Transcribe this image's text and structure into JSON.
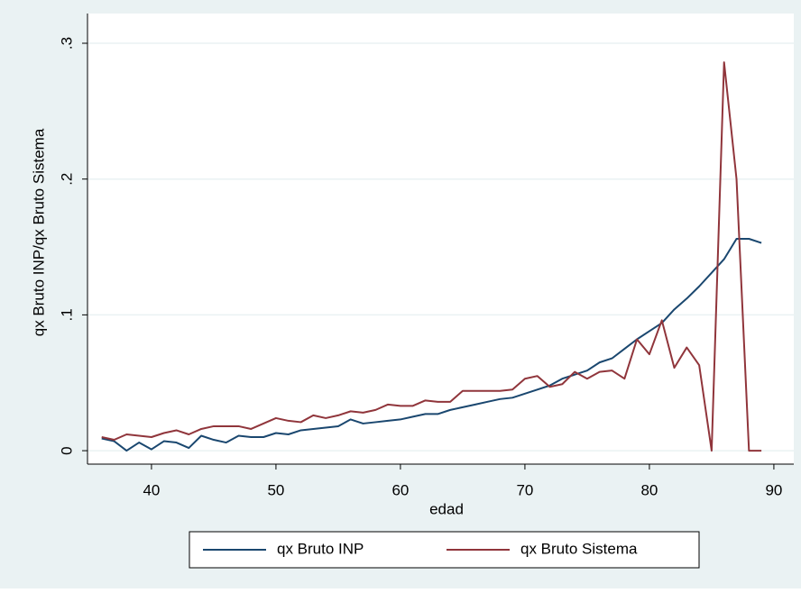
{
  "chart_data": {
    "type": "line",
    "x": [
      36,
      37,
      38,
      39,
      40,
      41,
      42,
      43,
      44,
      45,
      46,
      47,
      48,
      49,
      50,
      51,
      52,
      53,
      54,
      55,
      56,
      57,
      58,
      59,
      60,
      61,
      62,
      63,
      64,
      65,
      66,
      67,
      68,
      69,
      70,
      71,
      72,
      73,
      74,
      75,
      76,
      77,
      78,
      79,
      80,
      81,
      82,
      83,
      84,
      85,
      86,
      87,
      88,
      89
    ],
    "series": [
      {
        "name": "qx Bruto INP",
        "color": "#1a476f",
        "values": [
          0.009,
          0.007,
          0,
          0.006,
          0.001,
          0.007,
          0.006,
          0.002,
          0.011,
          0.008,
          0.006,
          0.011,
          0.01,
          0.01,
          0.013,
          0.012,
          0.015,
          0.016,
          0.017,
          0.018,
          0.023,
          0.02,
          0.021,
          0.022,
          0.023,
          0.025,
          0.027,
          0.027,
          0.03,
          0.032,
          0.034,
          0.036,
          0.038,
          0.039,
          0.042,
          0.045,
          0.048,
          0.053,
          0.056,
          0.059,
          0.065,
          0.068,
          0.075,
          0.082,
          0.088,
          0.094,
          0.104,
          0.112,
          0.121,
          0.131,
          0.141,
          0.156,
          0.156,
          0.153
        ]
      },
      {
        "name": "qx Bruto Sistema",
        "color": "#90353b",
        "values": [
          0.01,
          0.008,
          0.012,
          0.011,
          0.01,
          0.013,
          0.015,
          0.012,
          0.016,
          0.018,
          0.018,
          0.018,
          0.016,
          0.02,
          0.024,
          0.022,
          0.021,
          0.026,
          0.024,
          0.026,
          0.029,
          0.028,
          0.03,
          0.034,
          0.033,
          0.033,
          0.037,
          0.036,
          0.036,
          0.044,
          0.044,
          0.044,
          0.044,
          0.045,
          0.053,
          0.055,
          0.047,
          0.049,
          0.058,
          0.053,
          0.058,
          0.059,
          0.053,
          0.082,
          0.071,
          0.096,
          0.061,
          0.076,
          0.063,
          0,
          0.286,
          0.2,
          0,
          0
        ]
      }
    ],
    "x_label": "edad",
    "y_label": "qx Bruto INP/qx Bruto Sistema",
    "xlim": [
      34.86,
      91.6
    ],
    "xticks": [
      40,
      50,
      60,
      70,
      80,
      90
    ],
    "ylim": [
      -0.0099,
      0.3219
    ],
    "yticks": [
      0,
      {
        "value": 0.1,
        "label": ".1"
      },
      {
        "value": 0.2,
        "label": ".2"
      },
      {
        "value": 0.3,
        "label": ".3"
      }
    ],
    "grid": true,
    "legend_position": "bottom"
  }
}
